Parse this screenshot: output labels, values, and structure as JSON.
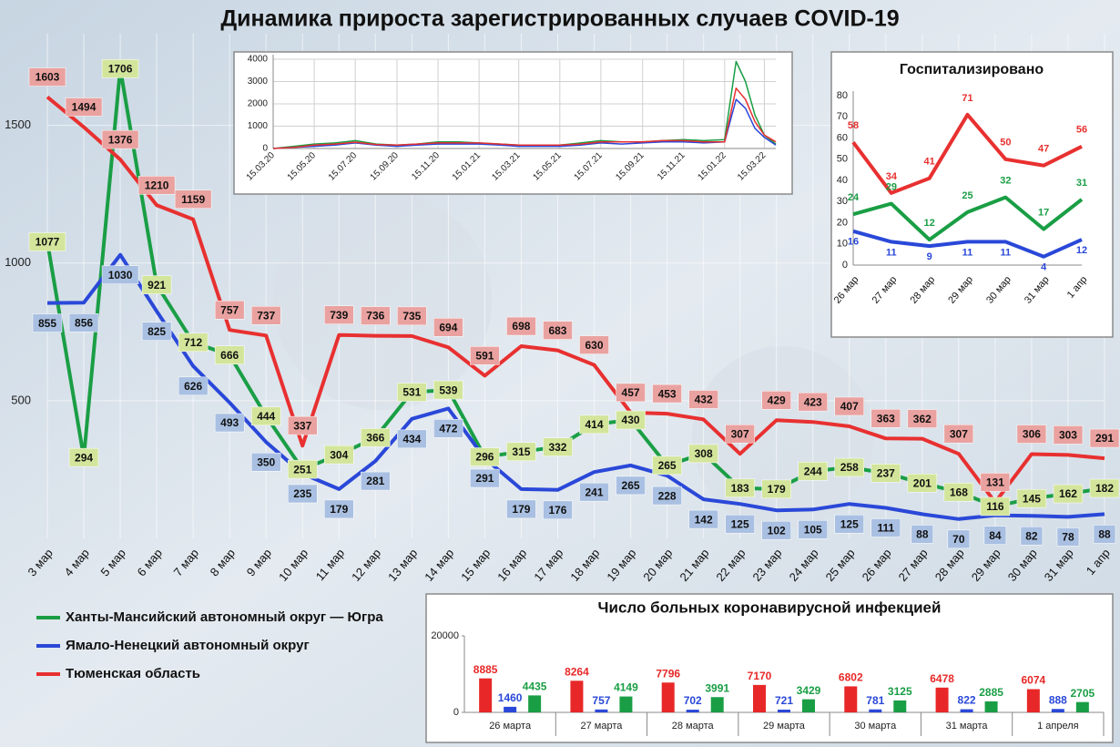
{
  "chart_data": [
    {
      "type": "line",
      "title": "Динамика прироста зарегистрированных случаев COVID-19",
      "categories": [
        "3 мар",
        "4 мар",
        "5 мар",
        "6 мар",
        "7 мар",
        "8 мар",
        "9 мар",
        "10 мар",
        "11 мар",
        "12 мар",
        "13 мар",
        "14 мар",
        "15 мар",
        "16 мар",
        "17 мар",
        "18 мар",
        "19 мар",
        "20 мар",
        "21 мар",
        "22 мар",
        "23 мар",
        "24 мар",
        "25 мар",
        "26 мар",
        "27 мар",
        "28 мар",
        "29 мар",
        "30 мар",
        "31 мар",
        "1 апр"
      ],
      "series": [
        {
          "name": "Ханты-Мансийский автономный округ — Югра",
          "color": "#1a9e45",
          "values": [
            1077,
            294,
            1706,
            921,
            712,
            666,
            444,
            251,
            304,
            366,
            531,
            539,
            296,
            315,
            332,
            414,
            430,
            265,
            308,
            183,
            179,
            244,
            258,
            237,
            201,
            168,
            116,
            145,
            162,
            182
          ]
        },
        {
          "name": "Ямало-Ненецкий автономный округ",
          "color": "#2a48d8",
          "values": [
            855,
            856,
            1030,
            825,
            626,
            493,
            350,
            235,
            179,
            281,
            434,
            472,
            291,
            179,
            176,
            241,
            265,
            228,
            142,
            125,
            102,
            105,
            125,
            111,
            88,
            70,
            84,
            82,
            78,
            88
          ]
        },
        {
          "name": "Тюменская область",
          "color": "#e83030",
          "values": [
            1603,
            1494,
            1376,
            1210,
            1159,
            757,
            737,
            337,
            739,
            736,
            735,
            694,
            591,
            698,
            683,
            630,
            457,
            453,
            432,
            307,
            429,
            423,
            407,
            363,
            362,
            307,
            131,
            306,
            303,
            291
          ]
        }
      ],
      "ylim": [
        0,
        1800
      ],
      "yticks": [
        500,
        1000,
        1500
      ],
      "grid": true,
      "data_labels": true,
      "legend": "bottom-left"
    },
    {
      "type": "line",
      "x": [
        "15.03.20",
        "15.04.20",
        "15.05.20",
        "15.06.20",
        "15.07.20",
        "15.08.20",
        "15.09.20",
        "15.10.20",
        "15.11.20",
        "15.12.20",
        "15.01.21",
        "15.02.21",
        "15.03.21",
        "15.04.21",
        "15.05.21",
        "15.06.21",
        "15.07.21",
        "15.08.21",
        "15.09.21",
        "15.10.21",
        "15.11.21",
        "15.12.21",
        "15.01.22",
        "01.02.22",
        "15.02.22",
        "01.03.22",
        "15.03.22",
        "01.04.22"
      ],
      "xticks": [
        "15.03.20",
        "15.05.20",
        "15.07.20",
        "15.09.20",
        "15.11.20",
        "15.01.21",
        "15.03.21",
        "15.05.21",
        "15.07.21",
        "15.09.21",
        "15.11.21",
        "15.01.22",
        "15.03.22"
      ],
      "series": [
        {
          "color": "#1a9e45",
          "values": [
            0,
            100,
            200,
            250,
            350,
            200,
            150,
            200,
            300,
            300,
            250,
            200,
            150,
            150,
            150,
            250,
            350,
            300,
            300,
            350,
            400,
            350,
            400,
            3900,
            3000,
            1500,
            600,
            200
          ]
        },
        {
          "color": "#2a48d8",
          "values": [
            0,
            50,
            100,
            150,
            250,
            150,
            100,
            150,
            200,
            200,
            200,
            150,
            100,
            100,
            100,
            150,
            250,
            200,
            250,
            300,
            300,
            250,
            300,
            2200,
            1800,
            900,
            500,
            150
          ]
        },
        {
          "color": "#e83030",
          "values": [
            0,
            50,
            150,
            200,
            280,
            180,
            150,
            200,
            250,
            250,
            250,
            200,
            150,
            150,
            150,
            200,
            300,
            300,
            300,
            350,
            350,
            300,
            300,
            2700,
            2200,
            1200,
            600,
            300
          ]
        }
      ],
      "ylim": [
        0,
        4000
      ],
      "yticks": [
        0,
        1000,
        2000,
        3000,
        4000
      ],
      "grid": true,
      "data_labels": false
    },
    {
      "type": "line",
      "title": "Госпитализировано",
      "categories": [
        "26 мар",
        "27 мар",
        "28 мар",
        "29 мар",
        "30 мар",
        "31 мар",
        "1 апр"
      ],
      "series": [
        {
          "color": "#e83030",
          "values": [
            58,
            34,
            41,
            71,
            50,
            47,
            56
          ]
        },
        {
          "color": "#1a9e45",
          "values": [
            24,
            29,
            12,
            25,
            32,
            17,
            31
          ]
        },
        {
          "color": "#2a48d8",
          "values": [
            16,
            11,
            9,
            11,
            11,
            4,
            12
          ]
        }
      ],
      "ylim": [
        0,
        80
      ],
      "yticks": [
        0,
        10,
        20,
        30,
        40,
        50,
        60,
        70,
        80
      ],
      "grid": false,
      "data_labels": true
    },
    {
      "type": "bar",
      "title": "Число больных коронавирусной инфекцией",
      "categories": [
        "26 марта",
        "27 марта",
        "28 марта",
        "29 марта",
        "30 марта",
        "31 марта",
        "1 апреля"
      ],
      "series": [
        {
          "color": "#e82828",
          "values": [
            8885,
            8264,
            7796,
            7170,
            6802,
            6478,
            6074
          ]
        },
        {
          "color": "#2a48d8",
          "values": [
            1460,
            757,
            702,
            721,
            781,
            822,
            888
          ]
        },
        {
          "color": "#1a9e45",
          "values": [
            4435,
            4149,
            3991,
            3429,
            3125,
            2885,
            2705
          ]
        }
      ],
      "ylim": [
        0,
        20000
      ],
      "yticks": [
        0,
        20000
      ],
      "data_labels": true
    }
  ]
}
